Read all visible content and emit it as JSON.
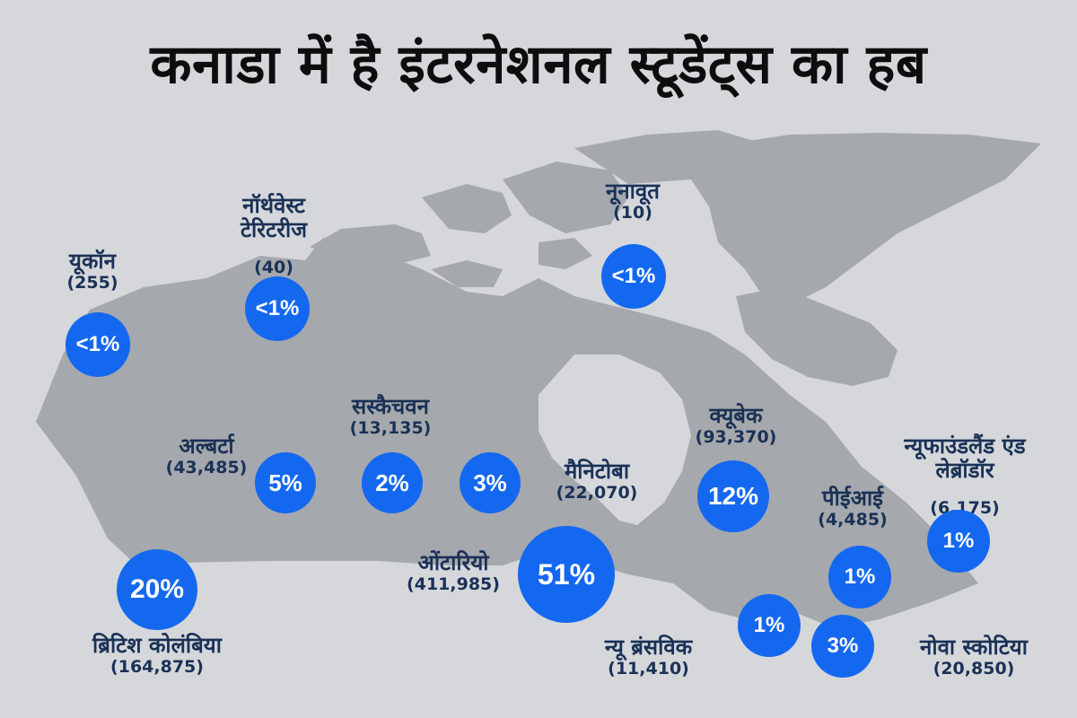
{
  "title": "कनाडा में है इंटरनेशनल स्टूडेंट्स का हब",
  "colors": {
    "land": "#a5a8ac",
    "water": "#d5d7da",
    "bubble": "#1468f0",
    "label": "#1a3157"
  },
  "provinces": [
    {
      "key": "yukon",
      "name": "यूकॉन",
      "count": "(255)",
      "share": "<1%"
    },
    {
      "key": "nwt",
      "name": "नॉर्थवेस्ट\nटेरिटरीज",
      "count": "(40)",
      "share": "<1%"
    },
    {
      "key": "nunavut",
      "name": "नूनावूत",
      "count": "(10)",
      "share": "<1%"
    },
    {
      "key": "bc",
      "name": "ब्रिटिश कोलंबिया",
      "count": "(164,875)",
      "share": "20%"
    },
    {
      "key": "alberta",
      "name": "अल्बर्टा",
      "count": "(43,485)",
      "share": "5%"
    },
    {
      "key": "saskatchewan",
      "name": "सस्कैचवन",
      "count": "(13,135)",
      "share": "2%"
    },
    {
      "key": "manitoba",
      "name": "मैनिटोबा",
      "count": "(22,070)",
      "share": "3%"
    },
    {
      "key": "ontario",
      "name": "ओंटारियो",
      "count": "(411,985)",
      "share": "51%"
    },
    {
      "key": "quebec",
      "name": "क्यूबेक",
      "count": "(93,370)",
      "share": "12%"
    },
    {
      "key": "newfoundland",
      "name": "न्यूफाउंडलैंड एंड\nलेब्रॉडॉर",
      "count": "(6,175)",
      "share": "1%"
    },
    {
      "key": "pei",
      "name": "पीईआई",
      "count": "(4,485)",
      "share": "1%"
    },
    {
      "key": "new_brunswick",
      "name": "न्यू ब्रंसविक",
      "count": "(11,410)",
      "share": "1%"
    },
    {
      "key": "nova_scotia",
      "name": "नोवा स्कोटिया",
      "count": "(20,850)",
      "share": "3%"
    }
  ]
}
